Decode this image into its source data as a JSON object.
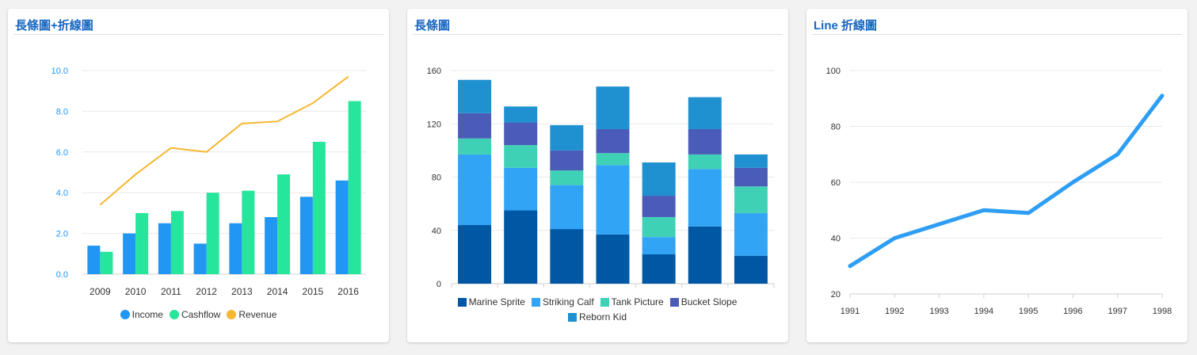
{
  "charts": {
    "combo": {
      "title": "長條圖+折線圖"
    },
    "stacked": {
      "title": "長條圖"
    },
    "line": {
      "title": "Line 折線圖"
    }
  },
  "chart_data": [
    {
      "type": "bar",
      "title": "長條圖+折線圖",
      "categories": [
        "2009",
        "2010",
        "2011",
        "2012",
        "2013",
        "2014",
        "2015",
        "2016"
      ],
      "series": [
        {
          "name": "Income",
          "type": "bar",
          "values": [
            1.4,
            2.0,
            2.5,
            1.5,
            2.5,
            2.8,
            3.8,
            4.6
          ],
          "color": "#2196f3"
        },
        {
          "name": "Cashflow",
          "type": "bar",
          "values": [
            1.1,
            3.0,
            3.1,
            4.0,
            4.1,
            4.9,
            6.5,
            8.5
          ],
          "color": "#26e69b"
        },
        {
          "name": "Revenue",
          "type": "line",
          "values": [
            3.4,
            4.9,
            6.2,
            6.0,
            7.4,
            7.5,
            8.4,
            9.7
          ],
          "color": "#f7b731"
        }
      ],
      "ylim": [
        0,
        10
      ],
      "yticks": [
        "0.0",
        "2.0",
        "4.0",
        "6.0",
        "8.0",
        "10.0"
      ],
      "grid": true,
      "legend": "bottom"
    },
    {
      "type": "bar",
      "stacked": true,
      "title": "長條圖",
      "categories": [
        "",
        "",
        "",
        "",
        "",
        "",
        ""
      ],
      "series": [
        {
          "name": "Marine Sprite",
          "values": [
            44,
            55,
            41,
            37,
            22,
            43,
            21
          ],
          "color": "#0057a4"
        },
        {
          "name": "Striking Calf",
          "values": [
            53,
            32,
            33,
            52,
            13,
            43,
            32
          ],
          "color": "#32a4f5"
        },
        {
          "name": "Tank Picture",
          "values": [
            12,
            17,
            11,
            9,
            15,
            11,
            20
          ],
          "color": "#3fd1b6"
        },
        {
          "name": "Bucket Slope",
          "values": [
            19,
            17,
            15,
            18,
            16,
            19,
            14
          ],
          "color": "#4a5cb8"
        },
        {
          "name": "Reborn Kid",
          "values": [
            25,
            12,
            19,
            32,
            25,
            24,
            10
          ],
          "color": "#1f91d1"
        }
      ],
      "ylim": [
        0,
        160
      ],
      "yticks": [
        "0",
        "40",
        "80",
        "120",
        "160"
      ],
      "grid": true,
      "legend": "bottom"
    },
    {
      "type": "line",
      "title": "Line 折線圖",
      "x": [
        "1991",
        "1992",
        "1993",
        "1994",
        "1995",
        "1996",
        "1997",
        "1998"
      ],
      "series": [
        {
          "values": [
            30,
            40,
            45,
            50,
            49,
            60,
            70,
            91
          ],
          "color": "#2e9ef4"
        }
      ],
      "ylim": [
        20,
        100
      ],
      "yticks": [
        "20",
        "40",
        "60",
        "80",
        "100"
      ],
      "grid": true
    }
  ]
}
